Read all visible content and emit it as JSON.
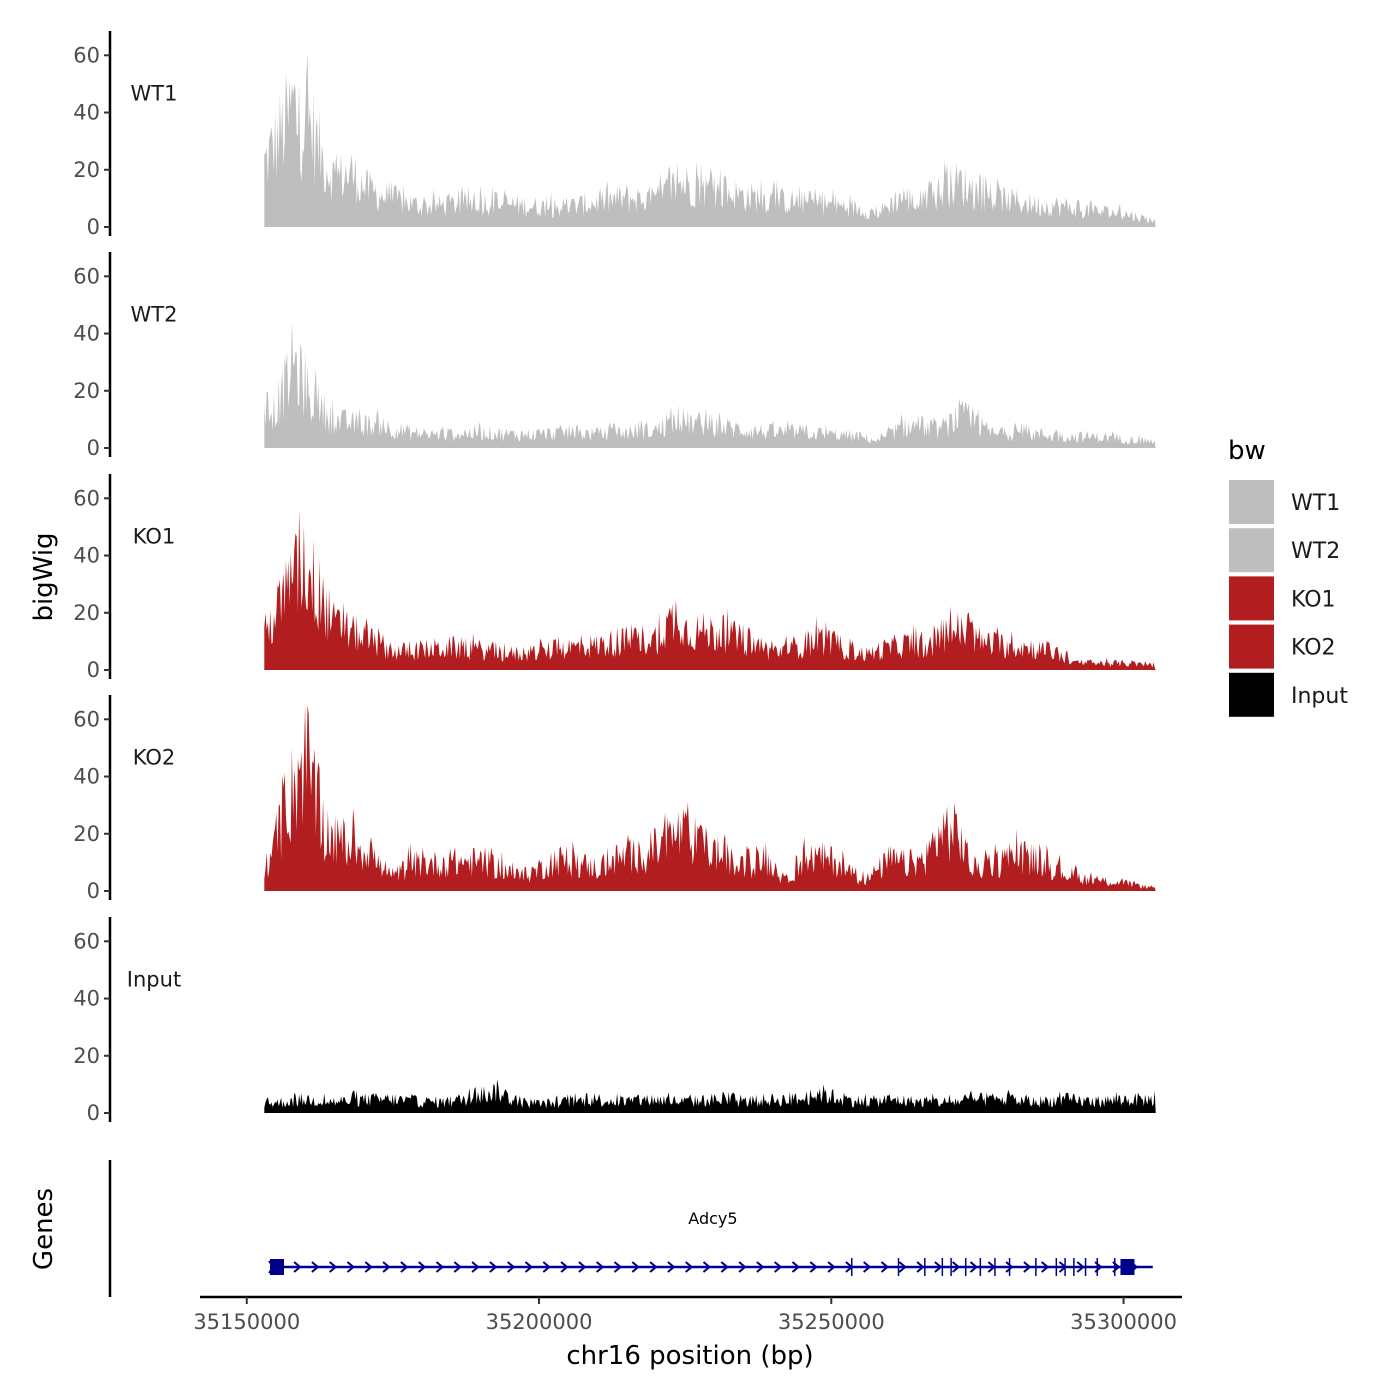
{
  "chart_data": {
    "type": "area",
    "title": "",
    "ylabel": "bigWig",
    "xlabel": "chr16 position (bp)",
    "ylim": [
      0,
      65
    ],
    "y_ticks": [
      0,
      20,
      40,
      60
    ],
    "xlim": [
      35142000,
      35310000
    ],
    "x_ticks": [
      35150000,
      35200000,
      35250000,
      35300000
    ],
    "x_tick_labels": [
      "35150000",
      "35200000",
      "35250000",
      "35300000"
    ],
    "legend": {
      "title": "bw",
      "position": "right",
      "entries": [
        {
          "label": "WT1",
          "color": "#bebebe"
        },
        {
          "label": "WT2",
          "color": "#bebebe"
        },
        {
          "label": "KO1",
          "color": "#b21d1f"
        },
        {
          "label": "KO2",
          "color": "#b21d1f"
        },
        {
          "label": "Input",
          "color": "#000000"
        }
      ]
    },
    "tracks": [
      {
        "name": "WT1",
        "color": "#bebebe",
        "start": 35153000,
        "end": 35305500,
        "approx_profile": [
          [
            35153000,
            28
          ],
          [
            35155000,
            38
          ],
          [
            35157000,
            47
          ],
          [
            35158000,
            55
          ],
          [
            35159000,
            42
          ],
          [
            35160000,
            50
          ],
          [
            35161000,
            45
          ],
          [
            35163000,
            30
          ],
          [
            35165000,
            22
          ],
          [
            35168000,
            24
          ],
          [
            35170000,
            18
          ],
          [
            35173000,
            14
          ],
          [
            35176000,
            12
          ],
          [
            35180000,
            9
          ],
          [
            35185000,
            10
          ],
          [
            35190000,
            11
          ],
          [
            35195000,
            10
          ],
          [
            35200000,
            9
          ],
          [
            35205000,
            9
          ],
          [
            35210000,
            11
          ],
          [
            35215000,
            13
          ],
          [
            35220000,
            12
          ],
          [
            35224000,
            20
          ],
          [
            35227000,
            18
          ],
          [
            35230000,
            16
          ],
          [
            35235000,
            14
          ],
          [
            35240000,
            12
          ],
          [
            35245000,
            11
          ],
          [
            35250000,
            10
          ],
          [
            35255000,
            8
          ],
          [
            35258000,
            6
          ],
          [
            35262000,
            14
          ],
          [
            35265000,
            10
          ],
          [
            35268000,
            15
          ],
          [
            35270000,
            18
          ],
          [
            35272000,
            20
          ],
          [
            35275000,
            14
          ],
          [
            35280000,
            12
          ],
          [
            35285000,
            10
          ],
          [
            35290000,
            9
          ],
          [
            35295000,
            7
          ],
          [
            35300000,
            6
          ],
          [
            35303000,
            4
          ],
          [
            35305500,
            3
          ]
        ]
      },
      {
        "name": "WT2",
        "color": "#bebebe",
        "start": 35153000,
        "end": 35305500,
        "approx_profile": [
          [
            35153000,
            14
          ],
          [
            35155000,
            18
          ],
          [
            35157000,
            30
          ],
          [
            35158000,
            40
          ],
          [
            35159000,
            32
          ],
          [
            35160000,
            26
          ],
          [
            35162000,
            20
          ],
          [
            35165000,
            12
          ],
          [
            35168000,
            11
          ],
          [
            35172000,
            10
          ],
          [
            35176000,
            8
          ],
          [
            35180000,
            6
          ],
          [
            35185000,
            6
          ],
          [
            35190000,
            7
          ],
          [
            35195000,
            6
          ],
          [
            35200000,
            6
          ],
          [
            35205000,
            7
          ],
          [
            35210000,
            6
          ],
          [
            35215000,
            7
          ],
          [
            35220000,
            8
          ],
          [
            35224000,
            12
          ],
          [
            35227000,
            11
          ],
          [
            35230000,
            10
          ],
          [
            35235000,
            8
          ],
          [
            35240000,
            7
          ],
          [
            35245000,
            7
          ],
          [
            35250000,
            6
          ],
          [
            35255000,
            5
          ],
          [
            35258000,
            3
          ],
          [
            35262000,
            9
          ],
          [
            35265000,
            10
          ],
          [
            35268000,
            8
          ],
          [
            35270000,
            10
          ],
          [
            35272000,
            15
          ],
          [
            35274000,
            12
          ],
          [
            35278000,
            6
          ],
          [
            35282000,
            7
          ],
          [
            35286000,
            6
          ],
          [
            35290000,
            5
          ],
          [
            35295000,
            5
          ],
          [
            35300000,
            4
          ],
          [
            35305500,
            3
          ]
        ]
      },
      {
        "name": "KO1",
        "color": "#b21d1f",
        "start": 35153000,
        "end": 35305500,
        "approx_profile": [
          [
            35153000,
            16
          ],
          [
            35155000,
            25
          ],
          [
            35157000,
            35
          ],
          [
            35159000,
            44
          ],
          [
            35160000,
            48
          ],
          [
            35161000,
            42
          ],
          [
            35163000,
            30
          ],
          [
            35165000,
            20
          ],
          [
            35168000,
            17
          ],
          [
            35172000,
            12
          ],
          [
            35176000,
            8
          ],
          [
            35180000,
            9
          ],
          [
            35185000,
            10
          ],
          [
            35190000,
            9
          ],
          [
            35195000,
            7
          ],
          [
            35200000,
            8
          ],
          [
            35205000,
            10
          ],
          [
            35210000,
            11
          ],
          [
            35215000,
            13
          ],
          [
            35220000,
            14
          ],
          [
            35224000,
            26
          ],
          [
            35225000,
            18
          ],
          [
            35228000,
            17
          ],
          [
            35232000,
            16
          ],
          [
            35236000,
            12
          ],
          [
            35240000,
            8
          ],
          [
            35245000,
            11
          ],
          [
            35248000,
            14
          ],
          [
            35252000,
            10
          ],
          [
            35256000,
            7
          ],
          [
            35260000,
            10
          ],
          [
            35264000,
            12
          ],
          [
            35267000,
            10
          ],
          [
            35270000,
            18
          ],
          [
            35273000,
            17
          ],
          [
            35276000,
            12
          ],
          [
            35280000,
            11
          ],
          [
            35284000,
            10
          ],
          [
            35288000,
            8
          ],
          [
            35292000,
            3
          ],
          [
            35296000,
            3
          ],
          [
            35300000,
            3
          ],
          [
            35305500,
            2
          ]
        ]
      },
      {
        "name": "KO2",
        "color": "#b21d1f",
        "start": 35153000,
        "end": 35305500,
        "approx_profile": [
          [
            35153000,
            10
          ],
          [
            35155000,
            20
          ],
          [
            35157000,
            38
          ],
          [
            35159000,
            55
          ],
          [
            35160000,
            60
          ],
          [
            35161000,
            50
          ],
          [
            35163000,
            30
          ],
          [
            35165000,
            22
          ],
          [
            35168000,
            21
          ],
          [
            35171000,
            18
          ],
          [
            35173000,
            10
          ],
          [
            35175000,
            6
          ],
          [
            35178000,
            12
          ],
          [
            35182000,
            12
          ],
          [
            35186000,
            13
          ],
          [
            35190000,
            13
          ],
          [
            35194000,
            10
          ],
          [
            35197000,
            6
          ],
          [
            35200000,
            10
          ],
          [
            35203000,
            14
          ],
          [
            35207000,
            12
          ],
          [
            35210000,
            10
          ],
          [
            35214000,
            15
          ],
          [
            35218000,
            16
          ],
          [
            35222000,
            22
          ],
          [
            35224000,
            26
          ],
          [
            35228000,
            20
          ],
          [
            35232000,
            15
          ],
          [
            35234000,
            10
          ],
          [
            35238000,
            14
          ],
          [
            35240000,
            12
          ],
          [
            35242000,
            4
          ],
          [
            35245000,
            14
          ],
          [
            35248000,
            15
          ],
          [
            35251000,
            13
          ],
          [
            35253000,
            8
          ],
          [
            35256000,
            5
          ],
          [
            35260000,
            14
          ],
          [
            35263000,
            12
          ],
          [
            35266000,
            14
          ],
          [
            35269000,
            28
          ],
          [
            35272000,
            25
          ],
          [
            35274000,
            10
          ],
          [
            35278000,
            12
          ],
          [
            35282000,
            16
          ],
          [
            35286000,
            13
          ],
          [
            35290000,
            8
          ],
          [
            35294000,
            5
          ],
          [
            35298000,
            4
          ],
          [
            35302000,
            3
          ],
          [
            35305500,
            1
          ]
        ]
      },
      {
        "name": "Input",
        "color": "#000000",
        "start": 35153000,
        "end": 35305500,
        "approx_profile": [
          [
            35153000,
            4
          ],
          [
            35160000,
            6
          ],
          [
            35165000,
            5
          ],
          [
            35170000,
            6
          ],
          [
            35175000,
            6
          ],
          [
            35180000,
            5
          ],
          [
            35185000,
            5
          ],
          [
            35190000,
            8
          ],
          [
            35193000,
            10
          ],
          [
            35196000,
            5
          ],
          [
            35200000,
            4
          ],
          [
            35205000,
            5
          ],
          [
            35210000,
            6
          ],
          [
            35215000,
            5
          ],
          [
            35220000,
            6
          ],
          [
            35225000,
            5
          ],
          [
            35230000,
            6
          ],
          [
            35235000,
            5
          ],
          [
            35240000,
            6
          ],
          [
            35245000,
            6
          ],
          [
            35248000,
            9
          ],
          [
            35252000,
            6
          ],
          [
            35256000,
            5
          ],
          [
            35260000,
            6
          ],
          [
            35265000,
            5
          ],
          [
            35270000,
            5
          ],
          [
            35275000,
            6
          ],
          [
            35280000,
            6
          ],
          [
            35285000,
            5
          ],
          [
            35290000,
            6
          ],
          [
            35295000,
            5
          ],
          [
            35300000,
            6
          ],
          [
            35305500,
            6
          ]
        ]
      }
    ],
    "gene_track": {
      "ylabel": "Genes",
      "color": "#00008b",
      "genes": [
        {
          "name": "Adcy5",
          "start": 35154500,
          "end": 35305000,
          "strand": "+",
          "exons": [
            35155000,
            35253500,
            35261500,
            35266000,
            35269000,
            35270500,
            35273000,
            35275500,
            35278000,
            35280500,
            35285000,
            35288500,
            35290000,
            35291500,
            35293500,
            35295500,
            35298500,
            35300500
          ]
        }
      ]
    }
  }
}
